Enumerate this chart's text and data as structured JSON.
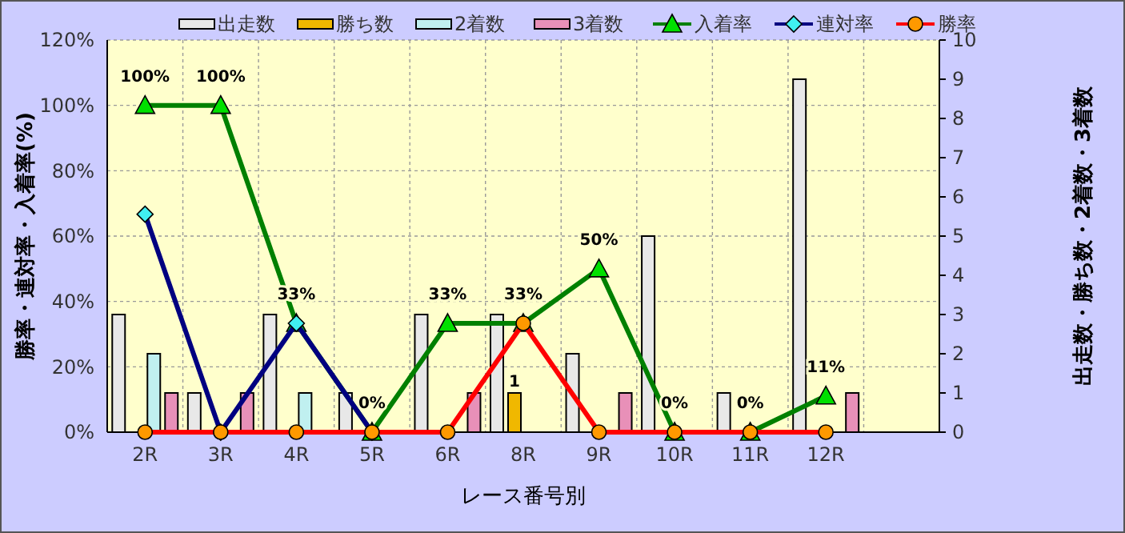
{
  "chart_data": {
    "type": "bar",
    "xlabel": "レース番号別",
    "ylabel": "勝率・連対率・入着率(%)",
    "y2label": "出走数・勝ち数・2着数・3着数",
    "categories": [
      "2R",
      "3R",
      "4R",
      "5R",
      "6R",
      "8R",
      "9R",
      "10R",
      "11R",
      "12R",
      null
    ],
    "series": [
      {
        "name": "出走数",
        "axis": "y2",
        "color": "#e8e8e8",
        "values": [
          3,
          1,
          3,
          1,
          3,
          3,
          2,
          5,
          1,
          9,
          null
        ]
      },
      {
        "name": "勝ち数",
        "axis": "y2",
        "color": "#f0b800",
        "values": [
          0,
          0,
          0,
          0,
          0,
          1,
          0,
          0,
          0,
          0,
          null
        ],
        "value_labels": [
          null,
          null,
          null,
          null,
          null,
          "1",
          null,
          null,
          null,
          null,
          null
        ]
      },
      {
        "name": "2着数",
        "axis": "y2",
        "color": "#c0f0f0",
        "values": [
          2,
          0,
          1,
          0,
          0,
          0,
          0,
          0,
          0,
          0,
          null
        ]
      },
      {
        "name": "3着数",
        "axis": "y2",
        "color": "#e890b8",
        "values": [
          1,
          1,
          0,
          0,
          1,
          0,
          1,
          0,
          0,
          1,
          null
        ]
      },
      {
        "name": "入着率",
        "type": "line",
        "color": "#008000",
        "marker": "triangle",
        "values": [
          100,
          100,
          33.3,
          0,
          33.3,
          33.3,
          50,
          0,
          0,
          11.1,
          null
        ],
        "value_labels": [
          "100%",
          "100%",
          "33%",
          "0%",
          "33%",
          "33%",
          "50%",
          "0%",
          "0%",
          "11%",
          null
        ]
      },
      {
        "name": "連対率",
        "type": "line",
        "color": "#000080",
        "marker": "diamond",
        "values": [
          66.7,
          0,
          33.3,
          0,
          null,
          null,
          null,
          null,
          null,
          null,
          null
        ]
      },
      {
        "name": "勝率",
        "type": "line",
        "color": "#ff0000",
        "marker": "circle",
        "values": [
          0,
          0,
          0,
          0,
          0,
          33.3,
          0,
          0,
          0,
          0,
          null
        ]
      }
    ],
    "ylim": [
      0,
      120
    ],
    "yticks": [
      {
        "value": 0,
        "label": "0%"
      },
      {
        "value": 20,
        "label": "20%"
      },
      {
        "value": 40,
        "label": "40%"
      },
      {
        "value": 60,
        "label": "60%"
      },
      {
        "value": 80,
        "label": "80%"
      },
      {
        "value": 100,
        "label": "100%"
      },
      {
        "value": 120,
        "label": "120%"
      }
    ],
    "y2lim": [
      0,
      10
    ],
    "y2ticks": [
      0,
      1,
      2,
      3,
      4,
      5,
      6,
      7,
      8,
      9,
      10
    ],
    "grid": true,
    "legend": "top"
  }
}
